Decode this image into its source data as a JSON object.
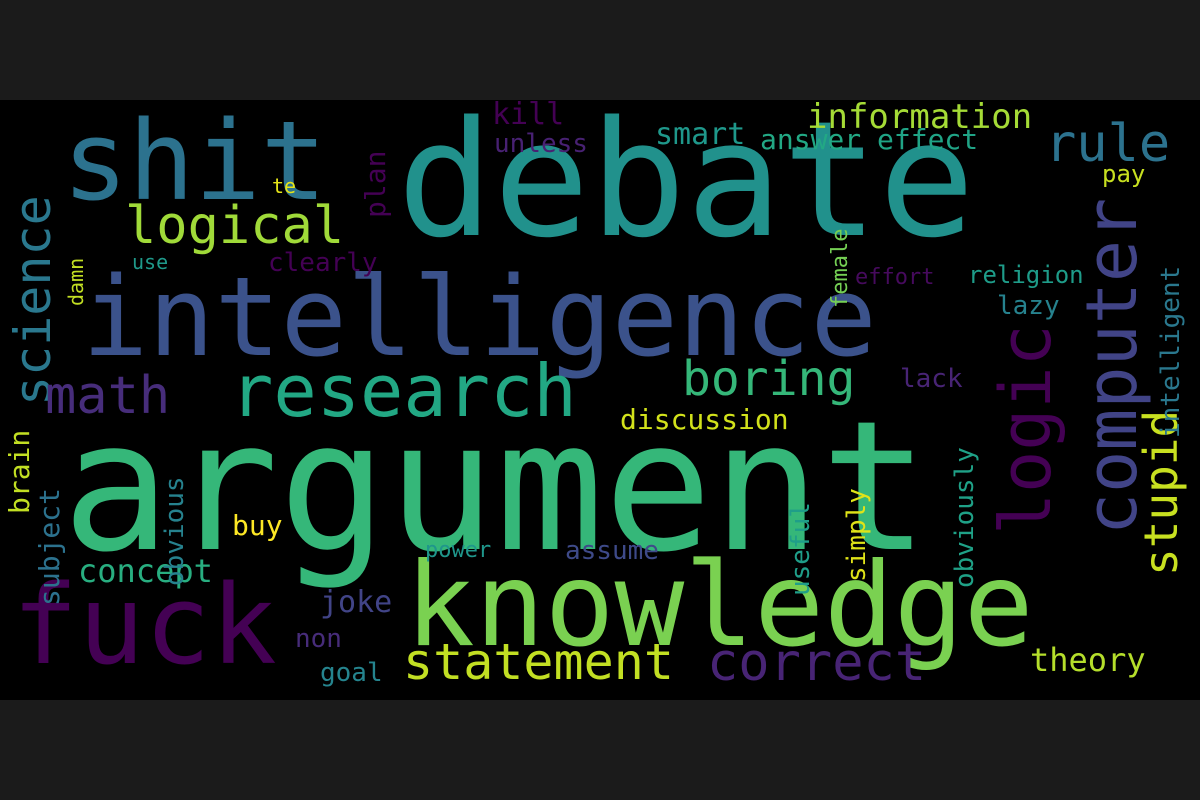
{
  "cloud": {
    "background": "#000000",
    "words": [
      {
        "text": "debate",
        "color": "#21918c",
        "rotated": false
      },
      {
        "text": "argument",
        "color": "#35b779",
        "rotated": false
      },
      {
        "text": "intelligence",
        "color": "#3b528b",
        "rotated": false
      },
      {
        "text": "knowledge",
        "color": "#7ad151",
        "rotated": false
      },
      {
        "text": "fuck",
        "color": "#440154",
        "rotated": false
      },
      {
        "text": "shit",
        "color": "#2c728e",
        "rotated": false
      },
      {
        "text": "research",
        "color": "#22a884",
        "rotated": false
      },
      {
        "text": "logic",
        "color": "#440154",
        "rotated": true
      },
      {
        "text": "computer",
        "color": "#414487",
        "rotated": true
      },
      {
        "text": "statement",
        "color": "#c2df23",
        "rotated": false
      },
      {
        "text": "correct",
        "color": "#482475",
        "rotated": false
      },
      {
        "text": "logical",
        "color": "#a0da39",
        "rotated": false
      },
      {
        "text": "science",
        "color": "#2a788e",
        "rotated": true
      },
      {
        "text": "boring",
        "color": "#35b779",
        "rotated": false
      },
      {
        "text": "math",
        "color": "#472d7b",
        "rotated": false
      },
      {
        "text": "rule",
        "color": "#2c728e",
        "rotated": false
      },
      {
        "text": "stupid",
        "color": "#c8e020",
        "rotated": true
      },
      {
        "text": "information",
        "color": "#a5db36",
        "rotated": false
      },
      {
        "text": "smart",
        "color": "#1f988b",
        "rotated": false
      },
      {
        "text": "answer",
        "color": "#22a884",
        "rotated": false
      },
      {
        "text": "effect",
        "color": "#20a486",
        "rotated": false
      },
      {
        "text": "concept",
        "color": "#28ae80",
        "rotated": false
      },
      {
        "text": "theory",
        "color": "#b5de2b",
        "rotated": false
      },
      {
        "text": "discussion",
        "color": "#d2e21b",
        "rotated": false
      },
      {
        "text": "intelligent",
        "color": "#2a788e",
        "rotated": true
      },
      {
        "text": "kill",
        "color": "#440154",
        "rotated": false
      },
      {
        "text": "unless",
        "color": "#482173",
        "rotated": false
      },
      {
        "text": "plan",
        "color": "#440154",
        "rotated": true
      },
      {
        "text": "joke",
        "color": "#414487",
        "rotated": false
      },
      {
        "text": "subject",
        "color": "#2c728e",
        "rotated": true
      },
      {
        "text": "brain",
        "color": "#c2df23",
        "rotated": true
      },
      {
        "text": "obvious",
        "color": "#26828e",
        "rotated": true
      },
      {
        "text": "buy",
        "color": "#fde725",
        "rotated": false
      },
      {
        "text": "useful",
        "color": "#1f9e89",
        "rotated": true
      },
      {
        "text": "simply",
        "color": "#dfe318",
        "rotated": true
      },
      {
        "text": "obviously",
        "color": "#1fa187",
        "rotated": true
      },
      {
        "text": "assume",
        "color": "#3e4a89",
        "rotated": false
      },
      {
        "text": "power",
        "color": "#1f968b",
        "rotated": false
      },
      {
        "text": "non",
        "color": "#472c7a",
        "rotated": false
      },
      {
        "text": "goal",
        "color": "#25848e",
        "rotated": false
      },
      {
        "text": "clearly",
        "color": "#440154",
        "rotated": false
      },
      {
        "text": "female",
        "color": "#75d054",
        "rotated": true
      },
      {
        "text": "effort",
        "color": "#460a5d",
        "rotated": false
      },
      {
        "text": "religion",
        "color": "#1e9c89",
        "rotated": false
      },
      {
        "text": "lazy",
        "color": "#26828e",
        "rotated": false
      },
      {
        "text": "lack",
        "color": "#482475",
        "rotated": false
      },
      {
        "text": "pay",
        "color": "#c8e020",
        "rotated": false
      },
      {
        "text": "damn",
        "color": "#c2df23",
        "rotated": true
      },
      {
        "text": "use",
        "color": "#1f998a",
        "rotated": false
      },
      {
        "text": "te",
        "color": "#e5e419",
        "rotated": false
      }
    ]
  }
}
